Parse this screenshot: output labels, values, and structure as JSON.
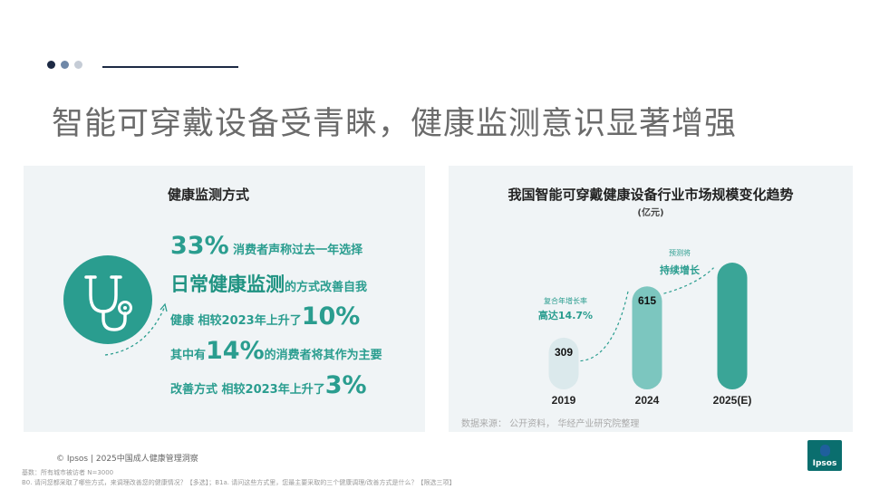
{
  "colors": {
    "teal": "#2a9d8f",
    "dark_navy": "#1d2a44",
    "dot2": "#6f88a8",
    "dot3": "#c5ccd6"
  },
  "header": {
    "title": "智能可穿戴设备受青睐，健康监测意识显著增强"
  },
  "left": {
    "title": "健康监测方式",
    "icon": "stethoscope-icon",
    "line1": {
      "big": "33%",
      "text": " 消费者声称过去一年选择"
    },
    "line2": {
      "big": "日常健康监测",
      "text": "的方式改善自我"
    },
    "line3": {
      "text": "健康 相较2023年上升了",
      "big": "10%"
    },
    "line4": {
      "text1": "其中有",
      "big": "14%",
      "text2": "的消费者将其作为主要"
    },
    "line5": {
      "text": "改善方式 相较2023年上升了",
      "big": "3%"
    }
  },
  "right": {
    "title": "我国智能可穿戴健康设备行业市场规模变化趋势",
    "unit": "(亿元)",
    "source": "数据来源： 公开资料， 华经产业研究院整理"
  },
  "chart_data": {
    "type": "bar",
    "categories": [
      "2019",
      "2024",
      "2025(E)"
    ],
    "values": [
      309,
      615,
      null
    ],
    "data_labels": [
      "309",
      "615",
      ""
    ],
    "colors": [
      "#dbe9ec",
      "#7cc6bf",
      "#3aa597"
    ],
    "annotations": [
      {
        "line1": "复合年增长率",
        "line2": "高达14.7%"
      },
      {
        "line1": "预测将",
        "line2": "持续增长"
      }
    ]
  },
  "footer": {
    "copyright": "© Ipsos | 2025中国成人健康管理洞察",
    "base": "基数：所有城市被访者 N=3000",
    "question": "B0. 请问您都采取了哪些方式，来调理改善您的健康情况？【多选】；B1a. 请问这些方式里，您最主要采取的三个健康调理/改善方式是什么？【限选三项】",
    "logo": "Ipsos"
  }
}
